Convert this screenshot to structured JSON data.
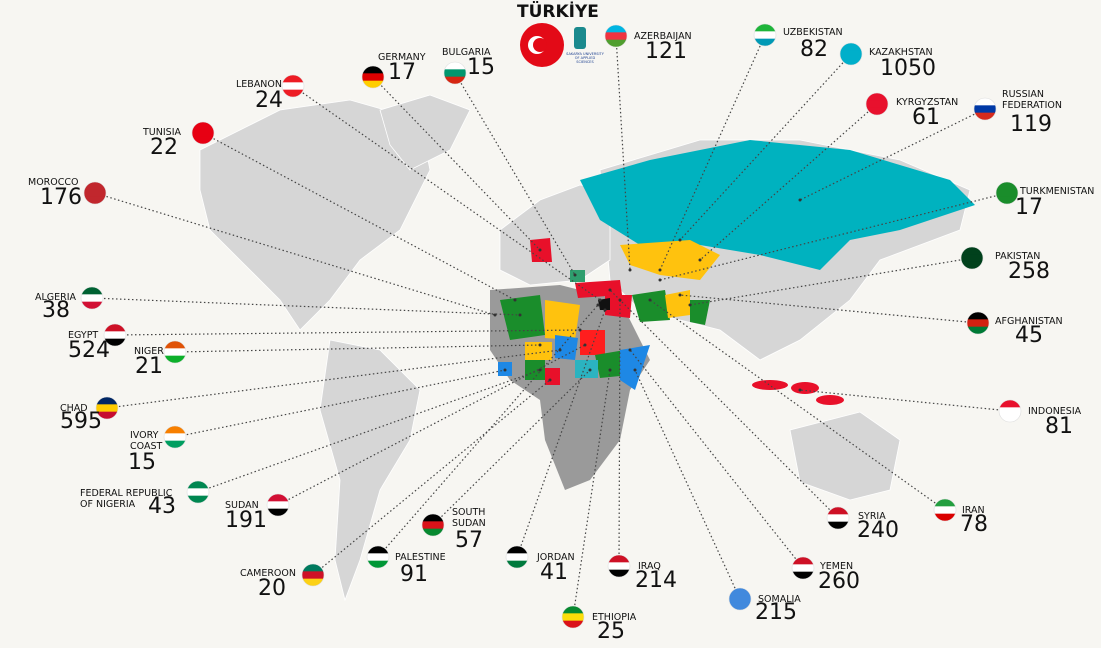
{
  "title": "TÜRKİYE",
  "logo": "SAKARYA UNIVERSITY OF APPLIED SCIENCES",
  "countries": [
    {
      "name": "AZERBAIJAN",
      "value": 121
    },
    {
      "name": "UZBEKISTAN",
      "value": 82
    },
    {
      "name": "KAZAKHSTAN",
      "value": 1050
    },
    {
      "name": "KYRGYZSTAN",
      "value": 61
    },
    {
      "name": "RUSSIAN FEDERATION",
      "value": 119
    },
    {
      "name": "TURKMENISTAN",
      "value": 17
    },
    {
      "name": "PAKISTAN",
      "value": 258
    },
    {
      "name": "AFGHANISTAN",
      "value": 45
    },
    {
      "name": "INDONESIA",
      "value": 81
    },
    {
      "name": "IRAN",
      "value": 78
    },
    {
      "name": "SYRIA",
      "value": 240
    },
    {
      "name": "YEMEN",
      "value": 260
    },
    {
      "name": "SOMALIA",
      "value": 215
    },
    {
      "name": "ETHIOPIA",
      "value": 25
    },
    {
      "name": "IRAQ",
      "value": 214
    },
    {
      "name": "JORDAN",
      "value": 41
    },
    {
      "name": "SOUTH SUDAN",
      "value": 57
    },
    {
      "name": "PALESTINE",
      "value": 91
    },
    {
      "name": "CAMEROON",
      "value": 20
    },
    {
      "name": "SUDAN",
      "value": 191
    },
    {
      "name": "FEDERAL REPUBLIC OF NIGERIA",
      "value": 43
    },
    {
      "name": "IVORY COAST",
      "value": 15
    },
    {
      "name": "CHAD",
      "value": 595
    },
    {
      "name": "NIGER",
      "value": 21
    },
    {
      "name": "EGYPT",
      "value": 524
    },
    {
      "name": "ALGERIA",
      "value": 38
    },
    {
      "name": "MOROCCO",
      "value": 176
    },
    {
      "name": "TUNISIA",
      "value": 22
    },
    {
      "name": "LEBANON",
      "value": 24
    },
    {
      "name": "GERMANY",
      "value": 17
    },
    {
      "name": "BULGARIA",
      "value": 15
    }
  ]
}
